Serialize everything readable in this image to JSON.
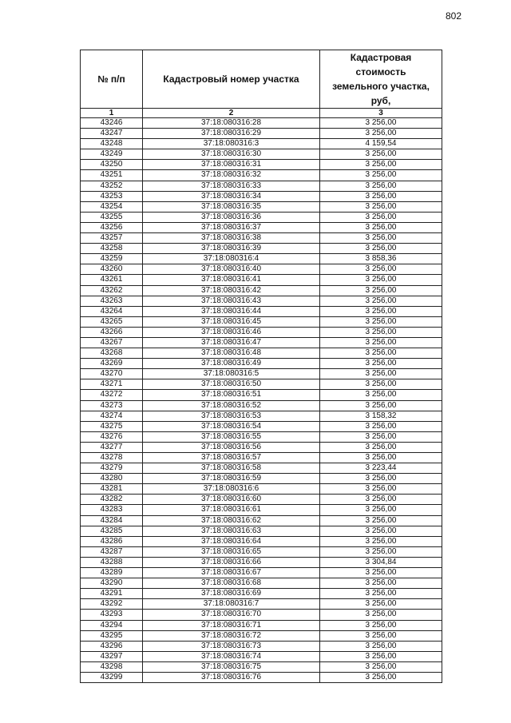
{
  "page_number": "802",
  "table": {
    "headers": [
      "№ п/п",
      "Кадастровый номер участка",
      "Кадастровая стоимость земельного участка, руб,"
    ],
    "column_numbers": [
      "1",
      "2",
      "3"
    ],
    "rows": [
      [
        "43246",
        "37:18:080316:28",
        "3 256,00"
      ],
      [
        "43247",
        "37:18:080316:29",
        "3 256,00"
      ],
      [
        "43248",
        "37:18:080316:3",
        "4 159,54"
      ],
      [
        "43249",
        "37:18:080316:30",
        "3 256,00"
      ],
      [
        "43250",
        "37:18:080316:31",
        "3 256,00"
      ],
      [
        "43251",
        "37:18:080316:32",
        "3 256,00"
      ],
      [
        "43252",
        "37:18:080316:33",
        "3 256,00"
      ],
      [
        "43253",
        "37:18:080316:34",
        "3 256,00"
      ],
      [
        "43254",
        "37:18:080316:35",
        "3 256,00"
      ],
      [
        "43255",
        "37:18:080316:36",
        "3 256,00"
      ],
      [
        "43256",
        "37:18:080316:37",
        "3 256,00"
      ],
      [
        "43257",
        "37:18:080316:38",
        "3 256,00"
      ],
      [
        "43258",
        "37:18:080316:39",
        "3 256,00"
      ],
      [
        "43259",
        "37:18:080316:4",
        "3 858,36"
      ],
      [
        "43260",
        "37:18:080316:40",
        "3 256,00"
      ],
      [
        "43261",
        "37:18:080316:41",
        "3 256,00"
      ],
      [
        "43262",
        "37:18:080316:42",
        "3 256,00"
      ],
      [
        "43263",
        "37:18:080316:43",
        "3 256,00"
      ],
      [
        "43264",
        "37:18:080316:44",
        "3 256,00"
      ],
      [
        "43265",
        "37:18:080316:45",
        "3 256,00"
      ],
      [
        "43266",
        "37:18:080316:46",
        "3 256,00"
      ],
      [
        "43267",
        "37:18:080316:47",
        "3 256,00"
      ],
      [
        "43268",
        "37:18:080316:48",
        "3 256,00"
      ],
      [
        "43269",
        "37:18:080316:49",
        "3 256,00"
      ],
      [
        "43270",
        "37:18:080316:5",
        "3 256,00"
      ],
      [
        "43271",
        "37:18:080316:50",
        "3 256,00"
      ],
      [
        "43272",
        "37:18:080316:51",
        "3 256,00"
      ],
      [
        "43273",
        "37:18:080316:52",
        "3 256,00"
      ],
      [
        "43274",
        "37:18:080316:53",
        "3 158,32"
      ],
      [
        "43275",
        "37:18:080316:54",
        "3 256,00"
      ],
      [
        "43276",
        "37:18:080316:55",
        "3 256,00"
      ],
      [
        "43277",
        "37:18:080316:56",
        "3 256,00"
      ],
      [
        "43278",
        "37:18:080316:57",
        "3 256,00"
      ],
      [
        "43279",
        "37:18:080316:58",
        "3 223,44"
      ],
      [
        "43280",
        "37:18:080316:59",
        "3 256,00"
      ],
      [
        "43281",
        "37:18:080316:6",
        "3 256,00"
      ],
      [
        "43282",
        "37:18:080316:60",
        "3 256,00"
      ],
      [
        "43283",
        "37:18:080316:61",
        "3 256,00"
      ],
      [
        "43284",
        "37:18:080316:62",
        "3 256,00"
      ],
      [
        "43285",
        "37:18:080316:63",
        "3 256,00"
      ],
      [
        "43286",
        "37:18:080316:64",
        "3 256,00"
      ],
      [
        "43287",
        "37:18:080316:65",
        "3 256,00"
      ],
      [
        "43288",
        "37:18:080316:66",
        "3 304,84"
      ],
      [
        "43289",
        "37:18:080316:67",
        "3 256,00"
      ],
      [
        "43290",
        "37:18:080316:68",
        "3 256,00"
      ],
      [
        "43291",
        "37:18:080316:69",
        "3 256,00"
      ],
      [
        "43292",
        "37:18:080316:7",
        "3 256,00"
      ],
      [
        "43293",
        "37:18:080316:70",
        "3 256,00"
      ],
      [
        "43294",
        "37:18:080316:71",
        "3 256,00"
      ],
      [
        "43295",
        "37:18:080316:72",
        "3 256,00"
      ],
      [
        "43296",
        "37:18:080316:73",
        "3 256,00"
      ],
      [
        "43297",
        "37:18:080316:74",
        "3 256,00"
      ],
      [
        "43298",
        "37:18:080316:75",
        "3 256,00"
      ],
      [
        "43299",
        "37:18:080316:76",
        "3 256,00"
      ]
    ]
  }
}
